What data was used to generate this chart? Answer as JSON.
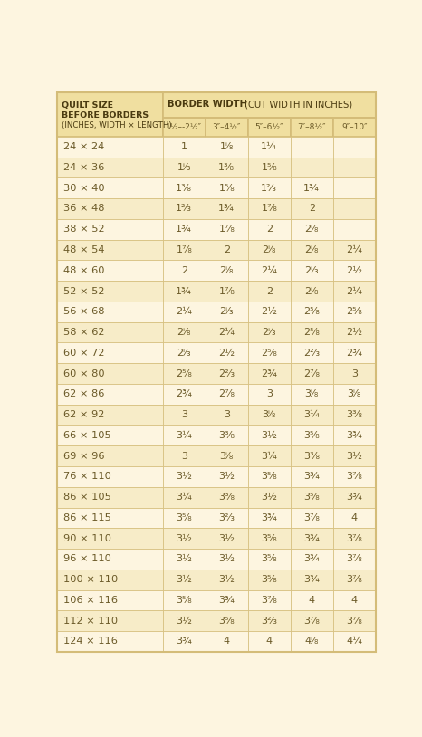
{
  "bg_color": "#fdf5e0",
  "header_bg": "#f0dfa0",
  "row_bg_odd": "#fdf5e0",
  "row_bg_even": "#f7ecc8",
  "border_color": "#d4bc78",
  "text_color": "#6b5a28",
  "header_text_color": "#4a3a10",
  "col_headers": [
    "1½–­2½″",
    "3″–4½″",
    "5″–6½″",
    "7″–8½″",
    "9″–10″"
  ],
  "rows": [
    [
      "24 × 24",
      "1",
      "1ⁱ⁄₈",
      "1¼",
      "",
      ""
    ],
    [
      "24 × 36",
      "1ⁱ⁄₃",
      "1³⁄₈",
      "1⁵⁄₈",
      "",
      ""
    ],
    [
      "30 × 40",
      "1³⁄₈",
      "1⁵⁄₈",
      "1²⁄₃",
      "1¾",
      ""
    ],
    [
      "36 × 48",
      "1²⁄₃",
      "1¾",
      "1⁷⁄₈",
      "2",
      ""
    ],
    [
      "38 × 52",
      "1¾",
      "1⁷⁄₈",
      "2",
      "2ⁱ⁄₈",
      ""
    ],
    [
      "48 × 54",
      "1⁷⁄₈",
      "2",
      "2ⁱ⁄₈",
      "2ⁱ⁄₈",
      "2¼"
    ],
    [
      "48 × 60",
      "2",
      "2ⁱ⁄₈",
      "2¼",
      "2ⁱ⁄₃",
      "2½"
    ],
    [
      "52 × 52",
      "1¾",
      "1⁷⁄₈",
      "2",
      "2ⁱ⁄₈",
      "2¼"
    ],
    [
      "56 × 68",
      "2¼",
      "2ⁱ⁄₃",
      "2½",
      "2⁵⁄₈",
      "2⁵⁄₈"
    ],
    [
      "58 × 62",
      "2ⁱ⁄₈",
      "2¼",
      "2ⁱ⁄₃",
      "2⁵⁄₈",
      "2½"
    ],
    [
      "60 × 72",
      "2ⁱ⁄₃",
      "2½",
      "2⁵⁄₈",
      "2²⁄₃",
      "2¾"
    ],
    [
      "60 × 80",
      "2⁵⁄₈",
      "2²⁄₃",
      "2¾",
      "2⁷⁄₈",
      "3"
    ],
    [
      "62 × 86",
      "2¾",
      "2⁷⁄₈",
      "3",
      "3ⁱ⁄₈",
      "3ⁱ⁄₈"
    ],
    [
      "62 × 92",
      "3",
      "3",
      "3ⁱ⁄₈",
      "3¼",
      "3³⁄₈"
    ],
    [
      "66 × 105",
      "3¼",
      "3³⁄₈",
      "3½",
      "3⁵⁄₈",
      "3¾"
    ],
    [
      "69 × 96",
      "3",
      "3ⁱ⁄₈",
      "3¼",
      "3³⁄₈",
      "3½"
    ],
    [
      "76 × 110",
      "3½",
      "3½",
      "3⁵⁄₈",
      "3¾",
      "3⁷⁄₈"
    ],
    [
      "86 × 105",
      "3¼",
      "3³⁄₈",
      "3½",
      "3⁵⁄₈",
      "3¾"
    ],
    [
      "86 × 115",
      "3⁵⁄₈",
      "3²⁄₃",
      "3¾",
      "3⁷⁄₈",
      "4"
    ],
    [
      "90 × 110",
      "3½",
      "3½",
      "3⁵⁄₈",
      "3¾",
      "3⁷⁄₈"
    ],
    [
      "96 × 110",
      "3½",
      "3½",
      "3⁵⁄₈",
      "3¾",
      "3⁷⁄₈"
    ],
    [
      "100 × 110",
      "3½",
      "3½",
      "3⁵⁄₈",
      "3¾",
      "3⁷⁄₈"
    ],
    [
      "106 × 116",
      "3⁵⁄₈",
      "3¾",
      "3⁷⁄₈",
      "4",
      "4"
    ],
    [
      "112 × 110",
      "3½",
      "3⁵⁄₈",
      "3²⁄₃",
      "3⁷⁄₈",
      "3⁷⁄₈"
    ],
    [
      "124 × 116",
      "3¾",
      "4",
      "4",
      "4ⁱ⁄₈",
      "4¼"
    ]
  ]
}
